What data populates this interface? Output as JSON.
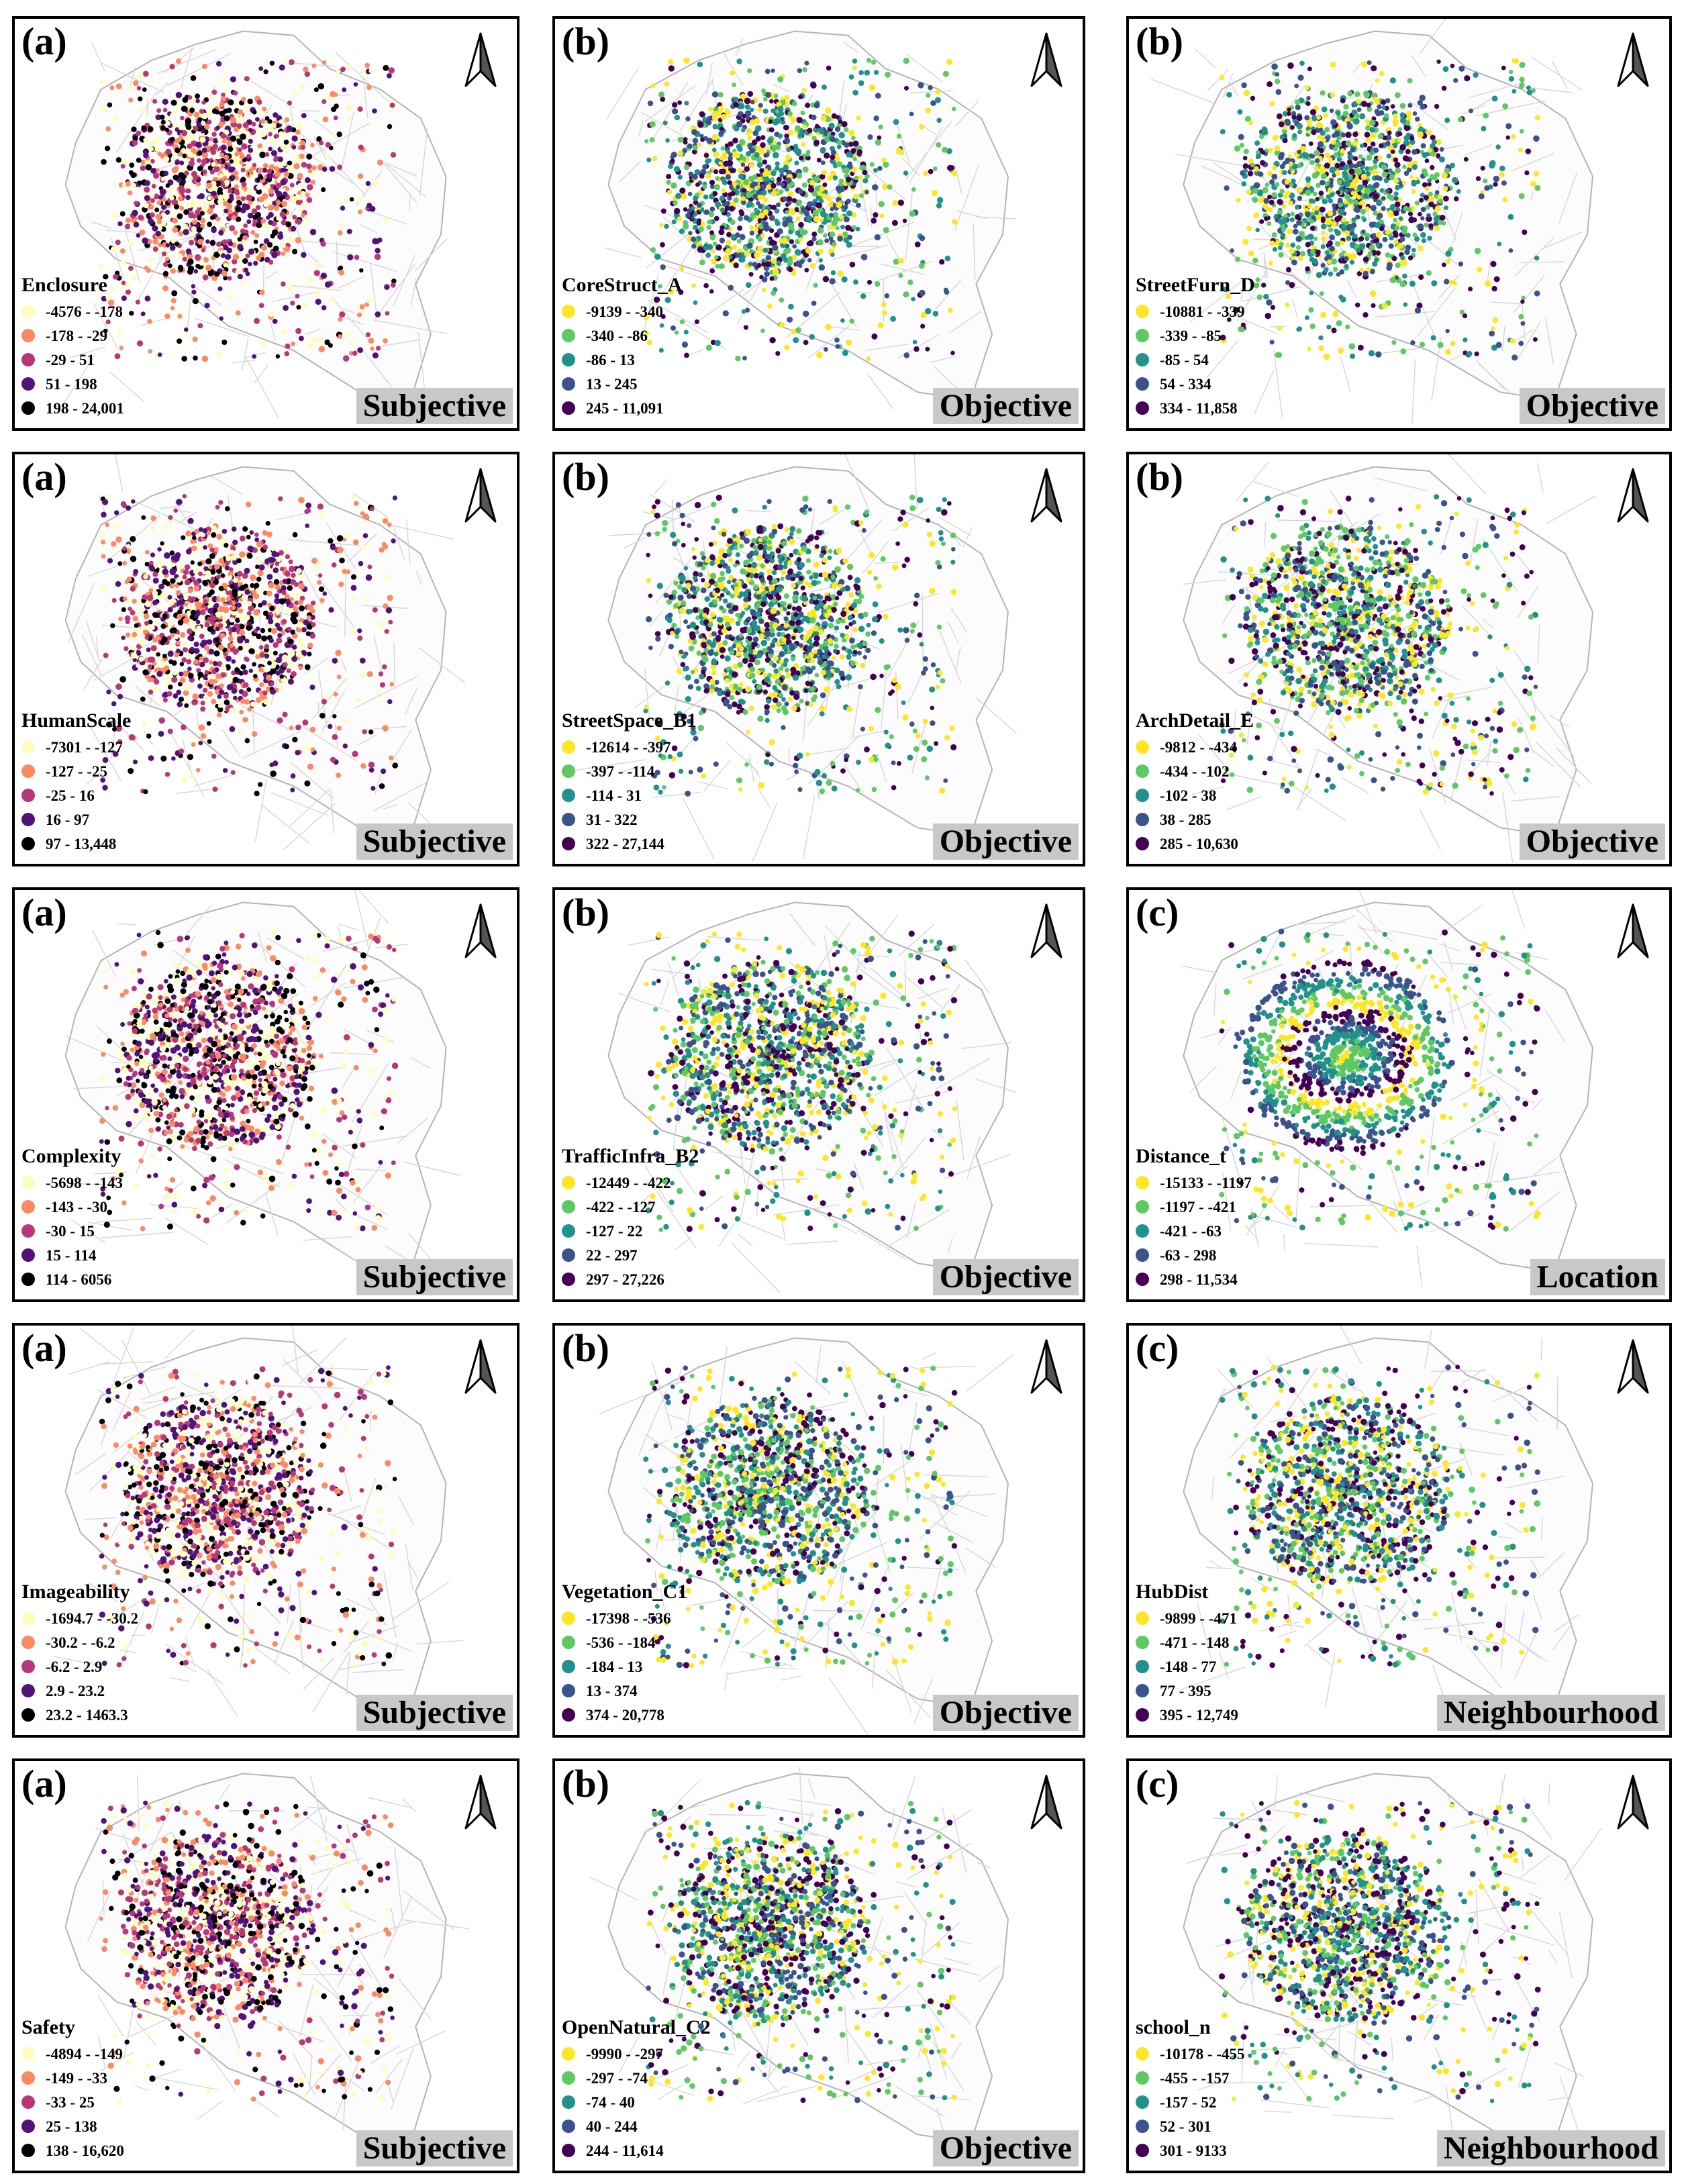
{
  "palettes": {
    "magma": [
      "#fcfdbf",
      "#fc8961",
      "#b73779",
      "#51127c",
      "#000004"
    ],
    "viridis": [
      "#fde725",
      "#5ec962",
      "#21918c",
      "#3b528b",
      "#440154"
    ]
  },
  "icons": {
    "north_arrow": "north-arrow-icon"
  },
  "panels": [
    {
      "label": "(a)",
      "title": "Enclosure",
      "palette": "magma",
      "category": "Subjective",
      "ranges": [
        "-4576 - -178",
        "-178 - -29",
        "-29 - 51",
        "51 - 198",
        "198 - 24,001"
      ]
    },
    {
      "label": "(b)",
      "title": "CoreStruct_A",
      "palette": "viridis",
      "category": "Objective",
      "ranges": [
        "-9139 - -340",
        "-340 - -86",
        "-86 - 13",
        "13 - 245",
        "245 - 11,091"
      ]
    },
    {
      "label": "(b)",
      "title": "StreetFurn_D",
      "palette": "viridis",
      "category": "Objective",
      "ranges": [
        "-10881 - -339",
        "-339 - -85",
        "-85 - 54",
        "54 - 334",
        "334 - 11,858"
      ]
    },
    {
      "label": "(a)",
      "title": "HumanScale",
      "palette": "magma",
      "category": "Subjective",
      "ranges": [
        "-7301 - -127",
        "-127 - -25",
        "-25 - 16",
        "16 - 97",
        "97 - 13,448"
      ]
    },
    {
      "label": "(b)",
      "title": "StreetSpace_B1",
      "palette": "viridis",
      "category": "Objective",
      "ranges": [
        "-12614 - -397",
        "-397 - -114",
        "-114 - 31",
        "31 - 322",
        "322 - 27,144"
      ]
    },
    {
      "label": "(b)",
      "title": "ArchDetail_E",
      "palette": "viridis",
      "category": "Objective",
      "ranges": [
        "-9812 - -434",
        "-434 - -102",
        "-102 - 38",
        "38 - 285",
        "285 - 10,630"
      ]
    },
    {
      "label": "(a)",
      "title": "Complexity",
      "palette": "magma",
      "category": "Subjective",
      "ranges": [
        "-5698 - -143",
        "-143 - -30",
        "-30 - 15",
        "15 - 114",
        "114 - 6056"
      ]
    },
    {
      "label": "(b)",
      "title": "TrafficInfra_B2",
      "palette": "viridis",
      "category": "Objective",
      "ranges": [
        "-12449 - -422",
        "-422 - -127",
        "-127 - 22",
        "22 - 297",
        "297 - 27,226"
      ]
    },
    {
      "label": "(c)",
      "title": "Distance_t",
      "palette": "viridis",
      "category": "Location",
      "ranges": [
        "-15133 - -1197",
        "-1197 - -421",
        "-421 - -63",
        "-63 - 298",
        "298 - 11,534"
      ]
    },
    {
      "label": "(a)",
      "title": "Imageability",
      "palette": "magma",
      "category": "Subjective",
      "ranges": [
        "-1694.7 - -30.2",
        "-30.2 - -6.2",
        "-6.2 - 2.9",
        "2.9 - 23.2",
        "23.2 - 1463.3"
      ]
    },
    {
      "label": "(b)",
      "title": "Vegetation_C1",
      "palette": "viridis",
      "category": "Objective",
      "ranges": [
        "-17398 - -536",
        "-536 - -184",
        "-184 - 13",
        "13 - 374",
        "374 - 20,778"
      ]
    },
    {
      "label": "(c)",
      "title": "HubDist",
      "palette": "viridis",
      "category": "Neighbourhood",
      "ranges": [
        "-9899 - -471",
        "-471 - -148",
        "-148 - 77",
        "77 - 395",
        "395 - 12,749"
      ]
    },
    {
      "label": "(a)",
      "title": "Safety",
      "palette": "magma",
      "category": "Subjective",
      "ranges": [
        "-4894 - -149",
        "-149 - -33",
        "-33 - 25",
        "25 - 138",
        "138 - 16,620"
      ]
    },
    {
      "label": "(b)",
      "title": "OpenNatural_C2",
      "palette": "viridis",
      "category": "Objective",
      "ranges": [
        "-9990 - -297",
        "-297 - -74",
        "-74 - 40",
        "40 - 244",
        "244 - 11,614"
      ]
    },
    {
      "label": "(c)",
      "title": "school_n",
      "palette": "viridis",
      "category": "Neighbourhood",
      "ranges": [
        "-10178 - -455",
        "-455 - -157",
        "-157 - 52",
        "52 - 301",
        "301 - 9133"
      ]
    }
  ]
}
